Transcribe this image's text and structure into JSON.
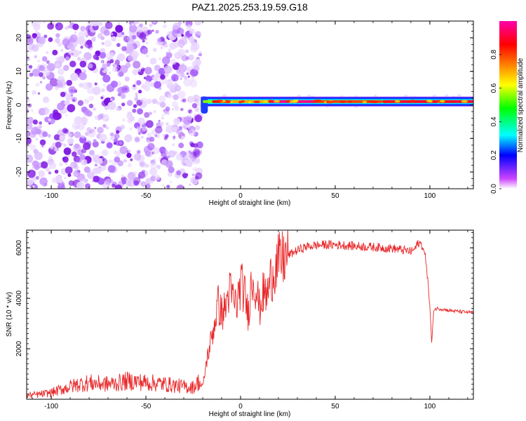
{
  "page": {
    "title": "PAZ1.2025.253.19.59.G18"
  },
  "chart_data": [
    {
      "type": "heatmap",
      "name": "spectrogram",
      "xlabel": "Height of straight line (km)",
      "ylabel": "Frequency (Hz)",
      "xlim": [
        -113,
        123
      ],
      "ylim": [
        -25,
        25
      ],
      "x_ticks": [
        -100,
        -50,
        0,
        50,
        100
      ],
      "x_tick_labels": [
        "-100",
        "-50",
        "0",
        "50",
        "100"
      ],
      "y_ticks": [
        -20,
        -10,
        0,
        10,
        20
      ],
      "y_tick_labels": [
        "-20",
        "-10",
        "0",
        "10",
        "20"
      ],
      "noise_region_x": [
        -113,
        -21
      ],
      "signal_band": {
        "x_start": -21,
        "x_end": 123,
        "center_freq_hz": 1,
        "half_width_hz": 1.5,
        "peak_amplitude_segments": [
          {
            "x": [
              -20,
              -15
            ],
            "amp": 0.55
          },
          {
            "x": [
              -15,
              -5
            ],
            "amp": 0.85
          },
          {
            "x": [
              -5,
              15
            ],
            "amp": 0.7
          },
          {
            "x": [
              15,
              40
            ],
            "amp": 0.97
          },
          {
            "x": [
              40,
              75
            ],
            "amp": 0.8
          },
          {
            "x": [
              75,
              123
            ],
            "amp": 0.9
          }
        ]
      },
      "grid": false
    },
    {
      "type": "colorbar",
      "name": "amplitude-colorbar",
      "label": "Normalized spectral amplitude",
      "range": [
        0,
        1
      ],
      "ticks": [
        0.0,
        0.2,
        0.4,
        0.6,
        0.8
      ],
      "tick_labels": [
        "0.0",
        "0.2",
        "0.4",
        "0.6",
        "0.8"
      ],
      "colormap": [
        "#ffffff",
        "#cc44ff",
        "#0000ff",
        "#00ffff",
        "#00ff00",
        "#ffff00",
        "#ff8000",
        "#ff0000",
        "#ff00aa"
      ]
    },
    {
      "type": "line",
      "name": "snr-profile",
      "xlabel": "Height of straight line (km)",
      "ylabel": "SNR (10 * v/v)",
      "xlim": [
        -113,
        123
      ],
      "ylim": [
        0,
        6700
      ],
      "x_ticks": [
        -100,
        -50,
        0,
        50,
        100
      ],
      "x_tick_labels": [
        "-100",
        "-50",
        "0",
        "50",
        "100"
      ],
      "y_ticks": [
        2000,
        4000,
        6000
      ],
      "y_tick_labels": [
        "2000",
        "4000",
        "6000"
      ],
      "series": [
        {
          "name": "SNR",
          "color": "#e8282a",
          "x": [
            -113,
            -105,
            -100,
            -95,
            -90,
            -85,
            -80,
            -75,
            -70,
            -65,
            -60,
            -55,
            -50,
            -45,
            -40,
            -35,
            -30,
            -25,
            -22,
            -20,
            -18,
            -16,
            -14,
            -12,
            -10,
            -8,
            -6,
            -4,
            -2,
            0,
            2,
            4,
            6,
            8,
            10,
            12,
            14,
            16,
            18,
            20,
            25,
            30,
            35,
            40,
            45,
            50,
            55,
            60,
            65,
            70,
            75,
            80,
            85,
            90,
            92,
            94,
            96,
            98,
            100,
            101,
            102,
            104,
            106,
            110,
            115,
            120,
            123
          ],
          "y": [
            150,
            200,
            260,
            380,
            500,
            600,
            650,
            620,
            600,
            640,
            720,
            700,
            660,
            640,
            600,
            550,
            500,
            480,
            700,
            450,
            1500,
            2200,
            2900,
            3800,
            3400,
            3600,
            4300,
            4000,
            3700,
            4600,
            4200,
            3400,
            4800,
            4500,
            3600,
            4200,
            4100,
            4800,
            5200,
            5400,
            5700,
            5900,
            6050,
            6100,
            6120,
            6120,
            6100,
            6070,
            6050,
            6030,
            6000,
            5980,
            5920,
            5850,
            5950,
            6200,
            6100,
            5500,
            3700,
            2200,
            3550,
            3600,
            3580,
            3520,
            3480,
            3450,
            3430
          ]
        }
      ],
      "grid": false
    }
  ]
}
